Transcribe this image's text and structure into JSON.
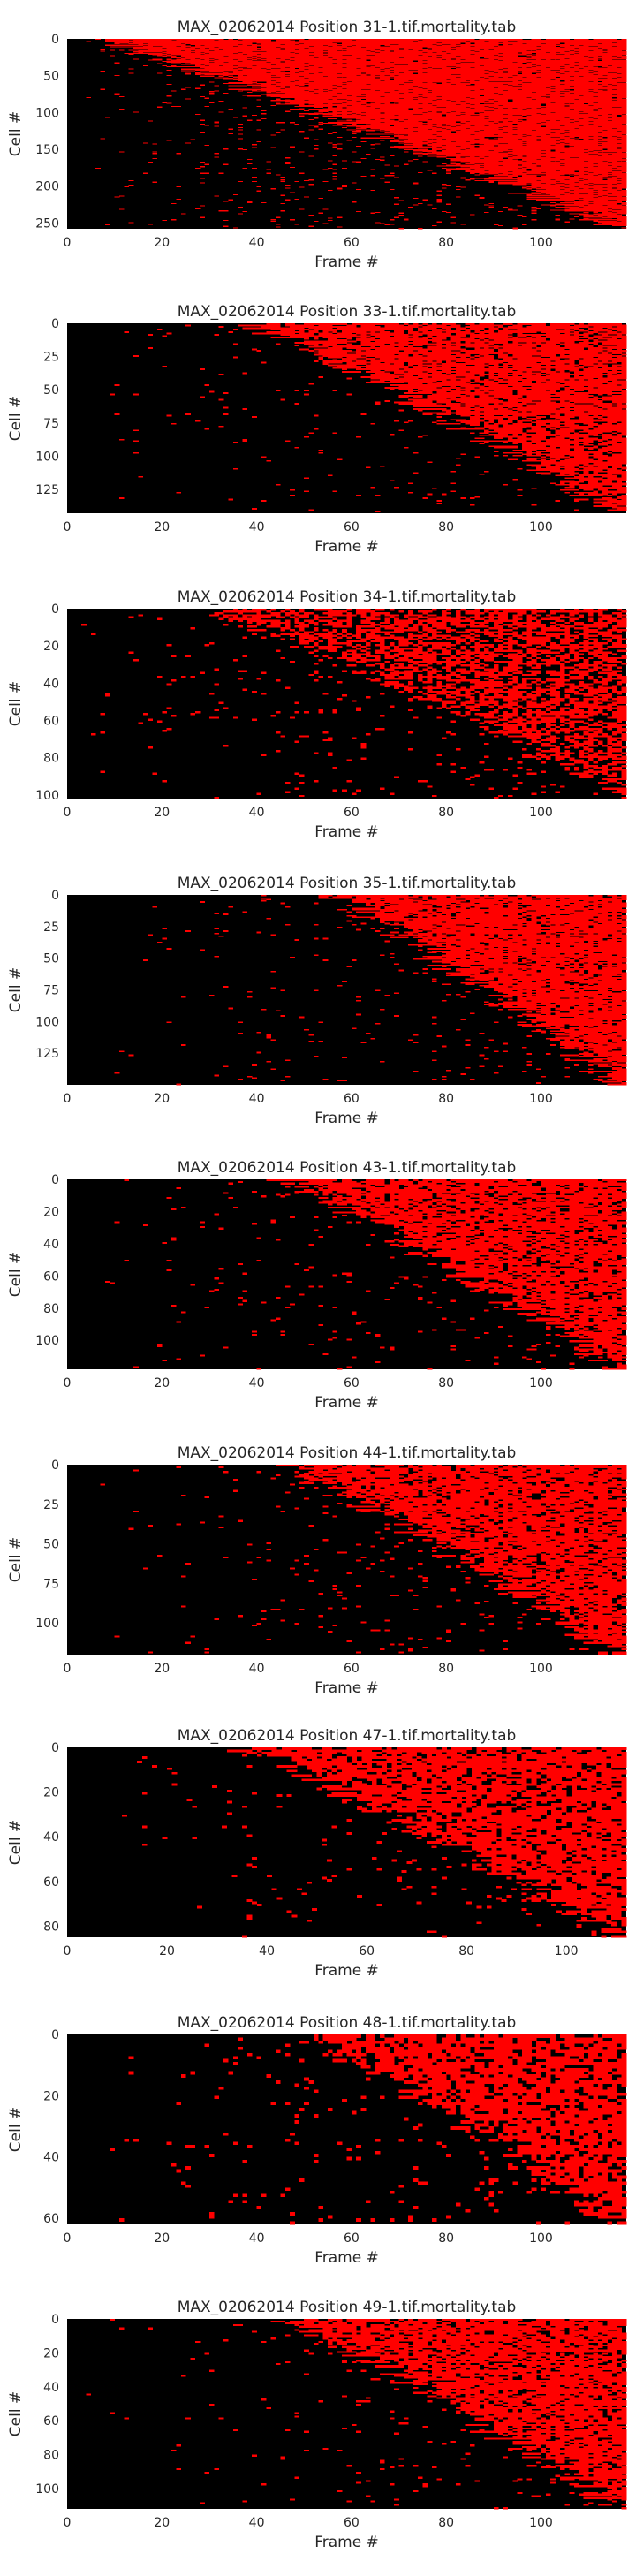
{
  "colors": {
    "background": "#ffffff",
    "dead": "#ff0000",
    "alive": "#000000",
    "text": "#262626"
  },
  "chart_data": [
    {
      "type": "heatmap",
      "title": "MAX_02062014 Position 31-1.tif.mortality.tab",
      "xlabel": "Frame #",
      "ylabel": "Cell #",
      "xticks": [
        0,
        20,
        40,
        60,
        80,
        100
      ],
      "yticks": [
        0,
        50,
        100,
        150,
        200,
        250
      ],
      "xlim": [
        0,
        118
      ],
      "ylim": [
        0,
        258
      ],
      "colormap": [
        "#000000",
        "#ff0000"
      ],
      "values_note": "binary per-cell per-frame state",
      "onset_first_frame": 5,
      "onset_last_frame": 116,
      "early_noise": 0.05,
      "dead_fill": 0.9
    },
    {
      "type": "heatmap",
      "title": "MAX_02062014 Position 33-1.tif.mortality.tab",
      "xlabel": "Frame #",
      "ylabel": "Cell #",
      "xticks": [
        0,
        20,
        40,
        60,
        80,
        100
      ],
      "yticks": [
        0,
        25,
        50,
        75,
        100,
        125
      ],
      "xlim": [
        0,
        118
      ],
      "ylim": [
        0,
        143
      ],
      "colormap": [
        "#000000",
        "#ff0000"
      ],
      "values_note": "binary per-cell per-frame state",
      "onset_first_frame": 38,
      "onset_last_frame": 116,
      "early_noise": 0.03,
      "dead_fill": 0.82
    },
    {
      "type": "heatmap",
      "title": "MAX_02062014 Position 34-1.tif.mortality.tab",
      "xlabel": "Frame #",
      "ylabel": "Cell #",
      "xticks": [
        0,
        20,
        40,
        60,
        80,
        100
      ],
      "yticks": [
        0,
        20,
        40,
        60,
        80,
        100
      ],
      "xlim": [
        0,
        118
      ],
      "ylim": [
        0,
        102
      ],
      "colormap": [
        "#000000",
        "#ff0000"
      ],
      "values_note": "binary per-cell per-frame state",
      "onset_first_frame": 30,
      "onset_last_frame": 118,
      "early_noise": 0.06,
      "dead_fill": 0.6
    },
    {
      "type": "heatmap",
      "title": "MAX_02062014 Position 35-1.tif.mortality.tab",
      "xlabel": "Frame #",
      "ylabel": "Cell #",
      "xticks": [
        0,
        20,
        40,
        60,
        80,
        100
      ],
      "yticks": [
        0,
        25,
        50,
        75,
        100,
        125
      ],
      "xlim": [
        0,
        118
      ],
      "ylim": [
        0,
        150
      ],
      "colormap": [
        "#000000",
        "#ff0000"
      ],
      "values_note": "binary per-cell per-frame state",
      "onset_first_frame": 55,
      "onset_last_frame": 116,
      "early_noise": 0.03,
      "dead_fill": 0.85
    },
    {
      "type": "heatmap",
      "title": "MAX_02062014 Position 43-1.tif.mortality.tab",
      "xlabel": "Frame #",
      "ylabel": "Cell #",
      "xticks": [
        0,
        20,
        40,
        60,
        80,
        100
      ],
      "yticks": [
        0,
        20,
        40,
        60,
        80,
        100
      ],
      "xlim": [
        0,
        118
      ],
      "ylim": [
        0,
        118
      ],
      "colormap": [
        "#000000",
        "#ff0000"
      ],
      "values_note": "binary per-cell per-frame state",
      "onset_first_frame": 45,
      "onset_last_frame": 116,
      "early_noise": 0.04,
      "dead_fill": 0.8
    },
    {
      "type": "heatmap",
      "title": "MAX_02062014 Position 44-1.tif.mortality.tab",
      "xlabel": "Frame #",
      "ylabel": "Cell #",
      "xticks": [
        0,
        20,
        40,
        60,
        80,
        100
      ],
      "yticks": [
        0,
        25,
        50,
        75,
        100
      ],
      "xlim": [
        0,
        118
      ],
      "ylim": [
        0,
        120
      ],
      "colormap": [
        "#000000",
        "#ff0000"
      ],
      "values_note": "binary per-cell per-frame state",
      "onset_first_frame": 45,
      "onset_last_frame": 116,
      "early_noise": 0.04,
      "dead_fill": 0.8
    },
    {
      "type": "heatmap",
      "title": "MAX_02062014 Position 47-1.tif.mortality.tab",
      "xlabel": "Frame #",
      "ylabel": "Cell #",
      "xticks": [
        0,
        20,
        40,
        60,
        80,
        100
      ],
      "yticks": [
        0,
        20,
        40,
        60,
        80
      ],
      "xlim": [
        0,
        112
      ],
      "ylim": [
        0,
        85
      ],
      "colormap": [
        "#000000",
        "#ff0000"
      ],
      "values_note": "binary per-cell per-frame state",
      "onset_first_frame": 35,
      "onset_last_frame": 110,
      "early_noise": 0.04,
      "dead_fill": 0.8
    },
    {
      "type": "heatmap",
      "title": "MAX_02062014 Position 48-1.tif.mortality.tab",
      "xlabel": "Frame #",
      "ylabel": "Cell #",
      "xticks": [
        0,
        20,
        40,
        60,
        80,
        100
      ],
      "yticks": [
        0,
        20,
        40,
        60
      ],
      "xlim": [
        0,
        118
      ],
      "ylim": [
        0,
        62
      ],
      "colormap": [
        "#000000",
        "#ff0000"
      ],
      "values_note": "binary per-cell per-frame state",
      "onset_first_frame": 50,
      "onset_last_frame": 116,
      "early_noise": 0.05,
      "dead_fill": 0.78
    },
    {
      "type": "heatmap",
      "title": "MAX_02062014 Position 49-1.tif.mortality.tab",
      "xlabel": "Frame #",
      "ylabel": "Cell #",
      "xticks": [
        0,
        20,
        40,
        60,
        80,
        100
      ],
      "yticks": [
        0,
        20,
        40,
        60,
        80,
        100
      ],
      "xlim": [
        0,
        118
      ],
      "ylim": [
        0,
        112
      ],
      "colormap": [
        "#000000",
        "#ff0000"
      ],
      "values_note": "binary per-cell per-frame state",
      "onset_first_frame": 45,
      "onset_last_frame": 116,
      "early_noise": 0.03,
      "dead_fill": 0.8
    }
  ]
}
